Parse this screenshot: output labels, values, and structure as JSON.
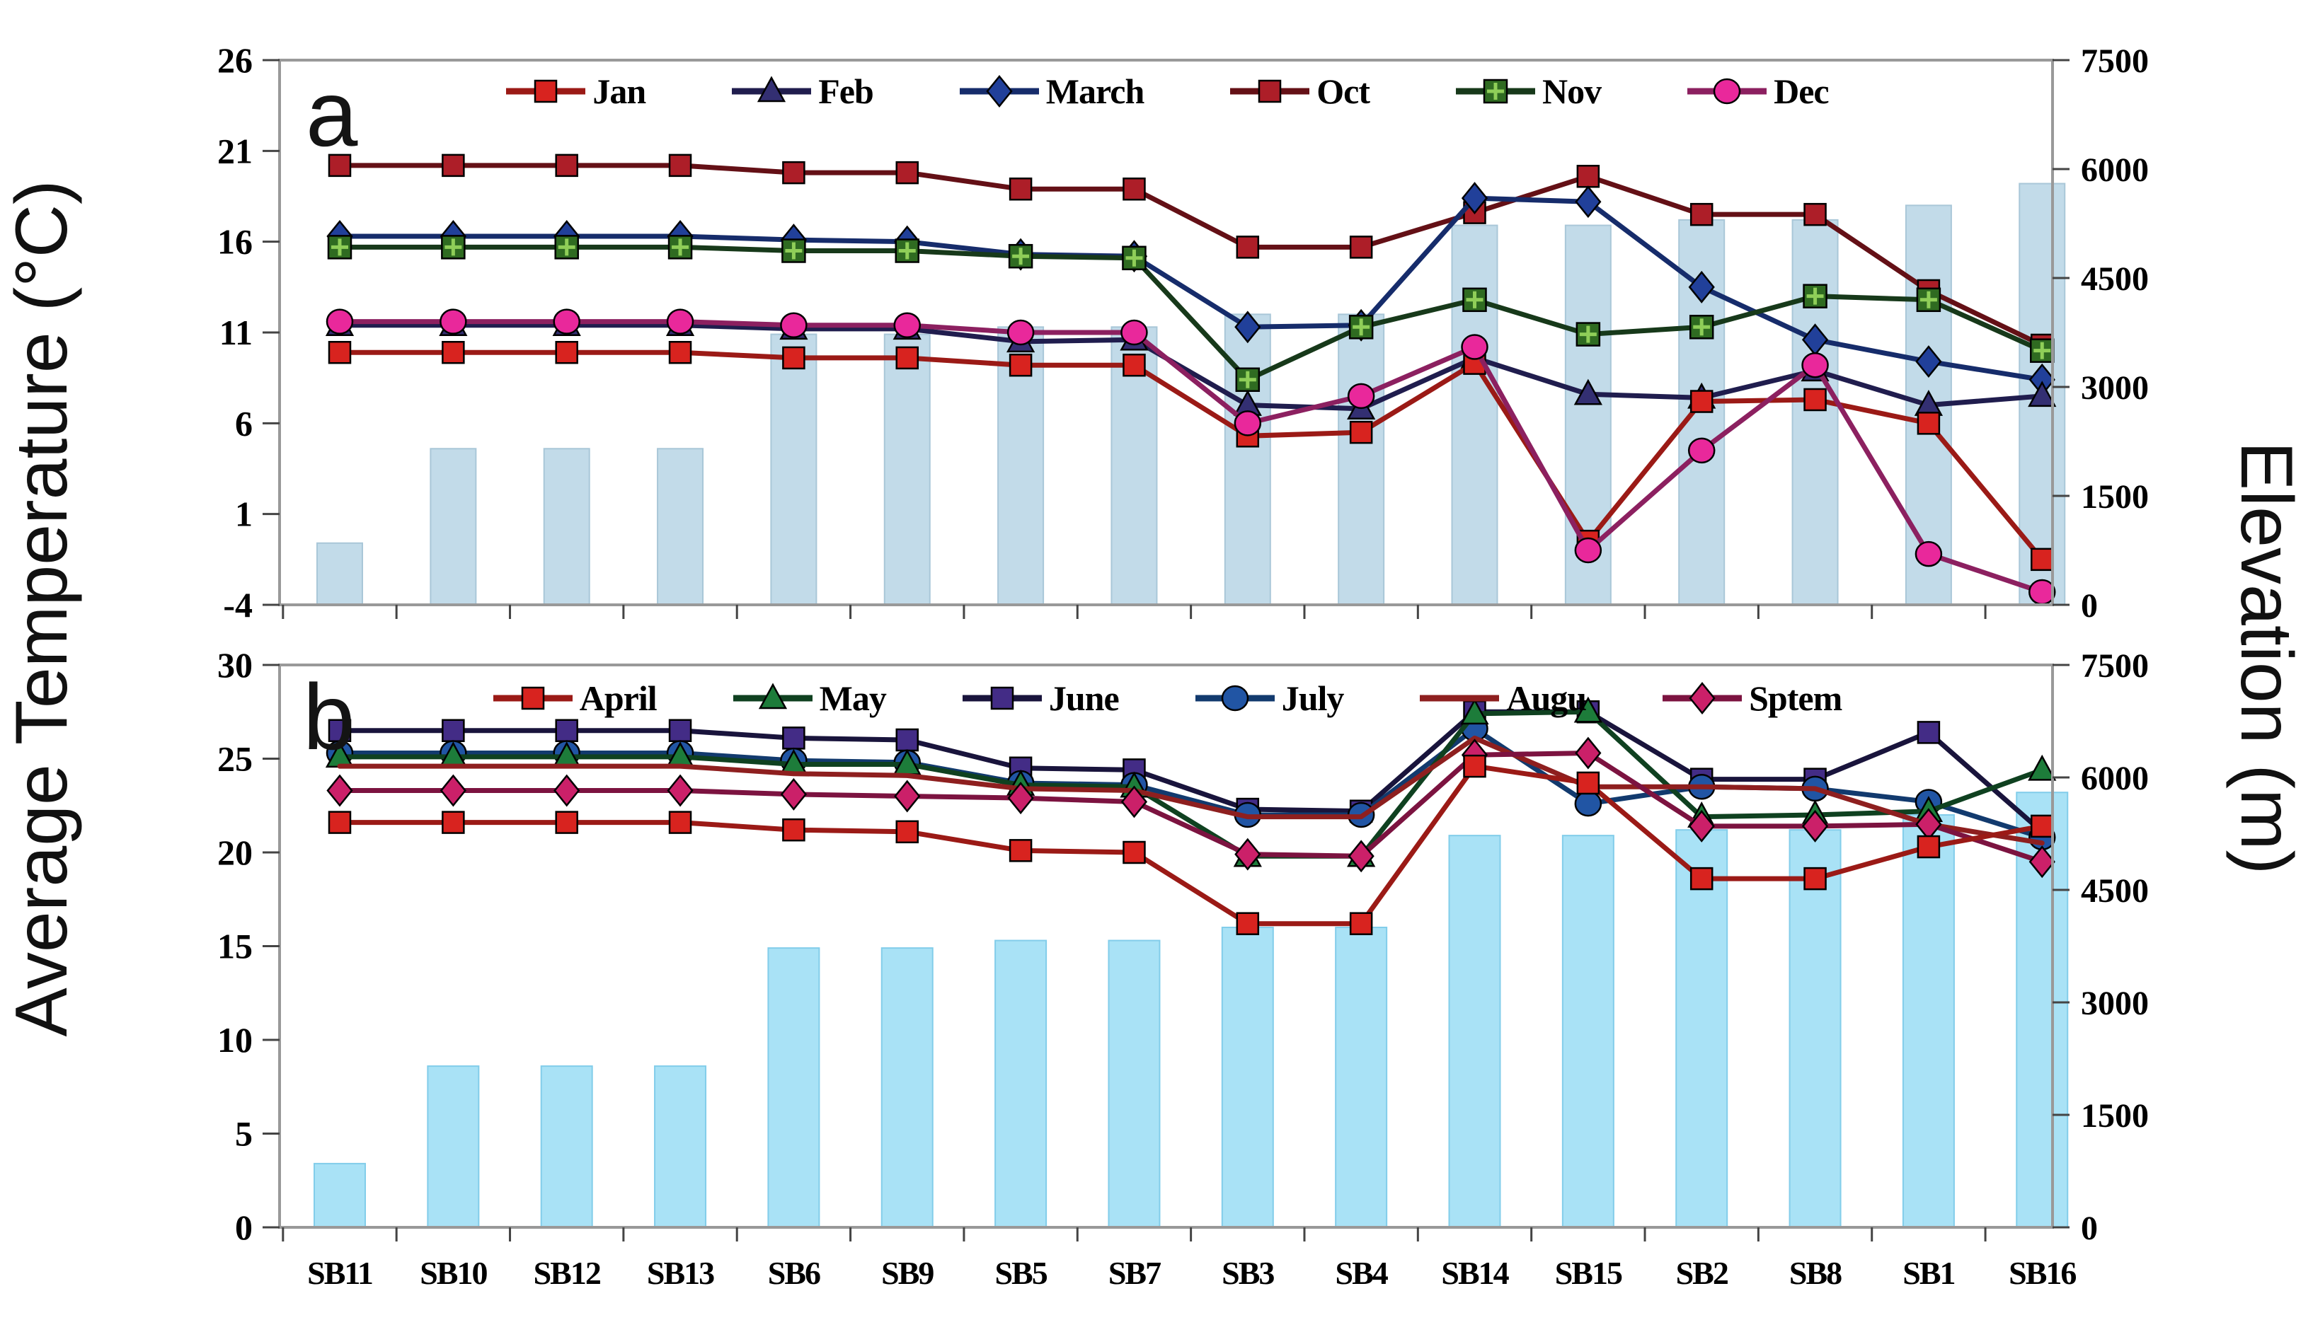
{
  "figure": {
    "left_axis_title": "Average Temperature (°C)",
    "right_axis_title": "Elevation (m)"
  },
  "stations": [
    "SB11",
    "SB10",
    "SB12",
    "SB13",
    "SB6",
    "SB9",
    "SB5",
    "SB7",
    "SB3",
    "SB4",
    "SB14",
    "SB15",
    "SB2",
    "SB8",
    "SB1",
    "SB16"
  ],
  "chart_data": [
    {
      "type": "line+bar",
      "panel_label": "a",
      "legend_position": "top",
      "categories": [
        "SB11",
        "SB10",
        "SB12",
        "SB13",
        "SB6",
        "SB9",
        "SB5",
        "SB7",
        "SB3",
        "SB4",
        "SB14",
        "SB15",
        "SB2",
        "SB8",
        "SB1",
        "SB16"
      ],
      "left_axis": {
        "label": "Average Temperature (°C)",
        "min": -4,
        "max": 26,
        "ticks": [
          26,
          21,
          16,
          11,
          6,
          1,
          -4
        ]
      },
      "right_axis": {
        "label": "Elevation (m)",
        "min": 0,
        "max": 7500,
        "ticks": [
          7500,
          6000,
          4500,
          3000,
          1500,
          0
        ]
      },
      "bars": {
        "name": "Elevation",
        "color": "#c2dbe9",
        "border": "#a9c7d8",
        "values": [
          850,
          2150,
          2150,
          2150,
          3725,
          3725,
          3825,
          3825,
          4000,
          4000,
          5225,
          5225,
          5300,
          5300,
          5500,
          5800
        ]
      },
      "series": [
        {
          "name": "Jan",
          "marker": "square",
          "color": "#d8231f",
          "line": "#9b1a16",
          "values": [
            9.9,
            9.9,
            9.9,
            9.9,
            9.6,
            9.6,
            9.2,
            9.2,
            5.3,
            5.5,
            9.3,
            -0.5,
            7.2,
            7.3,
            6.0,
            -1.5
          ]
        },
        {
          "name": "Feb",
          "marker": "triangle",
          "color": "#332f72",
          "line": "#201d4e",
          "values": [
            11.4,
            11.4,
            11.4,
            11.4,
            11.2,
            11.2,
            10.5,
            10.6,
            7.0,
            6.8,
            9.6,
            7.6,
            7.4,
            8.9,
            7.0,
            7.5
          ]
        },
        {
          "name": "March",
          "marker": "diamond",
          "color": "#21409a",
          "line": "#162c6b",
          "values": [
            16.3,
            16.3,
            16.3,
            16.3,
            16.1,
            16.0,
            15.3,
            15.2,
            11.3,
            11.4,
            18.4,
            18.2,
            13.5,
            10.6,
            9.4,
            8.4
          ]
        },
        {
          "name": "Oct",
          "marker": "square",
          "color": "#ad1e28",
          "line": "#641016",
          "values": [
            20.2,
            20.2,
            20.2,
            20.2,
            19.8,
            19.8,
            18.9,
            18.9,
            15.7,
            15.7,
            17.6,
            19.6,
            17.5,
            17.5,
            13.3,
            10.3
          ]
        },
        {
          "name": "Nov",
          "marker": "square-cross",
          "color": "#2f6b21",
          "line": "#17391a",
          "values": [
            15.7,
            15.7,
            15.7,
            15.7,
            15.5,
            15.5,
            15.2,
            15.1,
            8.4,
            11.3,
            12.8,
            10.9,
            11.3,
            13.0,
            12.8,
            10.0
          ]
        },
        {
          "name": "Dec",
          "marker": "circle",
          "color": "#e9289b",
          "line": "#8c2060",
          "values": [
            11.6,
            11.6,
            11.6,
            11.6,
            11.4,
            11.4,
            11.0,
            11.0,
            6.0,
            7.5,
            10.2,
            -1.0,
            4.5,
            9.2,
            -1.2,
            -3.3
          ]
        }
      ]
    },
    {
      "type": "line+bar",
      "panel_label": "b",
      "legend_position": "top",
      "categories": [
        "SB11",
        "SB10",
        "SB12",
        "SB13",
        "SB6",
        "SB9",
        "SB5",
        "SB7",
        "SB3",
        "SB4",
        "SB14",
        "SB15",
        "SB2",
        "SB8",
        "SB1",
        "SB16"
      ],
      "left_axis": {
        "label": "Average Temperature (°C)",
        "min": 0,
        "max": 30,
        "ticks": [
          30,
          25,
          20,
          15,
          10,
          5,
          0
        ]
      },
      "right_axis": {
        "label": "Elevation (m)",
        "min": 0,
        "max": 7500,
        "ticks": [
          7500,
          6000,
          4500,
          3000,
          1500,
          0
        ]
      },
      "bars": {
        "name": "Elevation",
        "color": "#a9e2f6",
        "border": "#82cdea",
        "values": [
          850,
          2150,
          2150,
          2150,
          3725,
          3725,
          3825,
          3825,
          4000,
          4000,
          5225,
          5225,
          5300,
          5300,
          5500,
          5800
        ]
      },
      "series": [
        {
          "name": "April",
          "marker": "square",
          "color": "#d8231f",
          "line": "#9b1a16",
          "values": [
            21.6,
            21.6,
            21.6,
            21.6,
            21.2,
            21.1,
            20.1,
            20.0,
            16.2,
            16.2,
            24.6,
            23.7,
            18.6,
            18.6,
            20.3,
            21.4
          ]
        },
        {
          "name": "May",
          "marker": "triangle",
          "color": "#1d7c3a",
          "line": "#0f4120",
          "values": [
            25.1,
            25.1,
            25.1,
            25.1,
            24.7,
            24.7,
            23.6,
            23.5,
            19.8,
            19.8,
            27.4,
            27.5,
            21.9,
            22.0,
            22.2,
            24.4
          ]
        },
        {
          "name": "June",
          "marker": "square",
          "color": "#432c86",
          "line": "#19143c",
          "values": [
            26.5,
            26.5,
            26.5,
            26.5,
            26.1,
            26.0,
            24.5,
            24.4,
            22.3,
            22.2,
            27.5,
            27.5,
            23.9,
            23.9,
            26.4,
            21.1
          ]
        },
        {
          "name": "July",
          "marker": "circle",
          "color": "#2155a4",
          "line": "#123a6e",
          "values": [
            25.3,
            25.3,
            25.3,
            25.3,
            24.9,
            24.8,
            23.7,
            23.6,
            22.0,
            22.0,
            26.6,
            22.6,
            23.5,
            23.4,
            22.7,
            20.8
          ]
        },
        {
          "name": "Augu",
          "marker": "none",
          "color": "#a32323",
          "line": "#8e1f1f",
          "values": [
            24.6,
            24.6,
            24.6,
            24.6,
            24.2,
            24.1,
            23.4,
            23.3,
            21.9,
            21.9,
            26.1,
            23.5,
            23.5,
            23.4,
            21.5,
            20.5
          ]
        },
        {
          "name": "Sptem",
          "marker": "diamond",
          "color": "#cb2069",
          "line": "#7c1340",
          "values": [
            23.3,
            23.3,
            23.3,
            23.3,
            23.1,
            23.0,
            22.9,
            22.7,
            19.9,
            19.8,
            25.2,
            25.3,
            21.4,
            21.4,
            21.5,
            19.5
          ]
        }
      ]
    }
  ]
}
